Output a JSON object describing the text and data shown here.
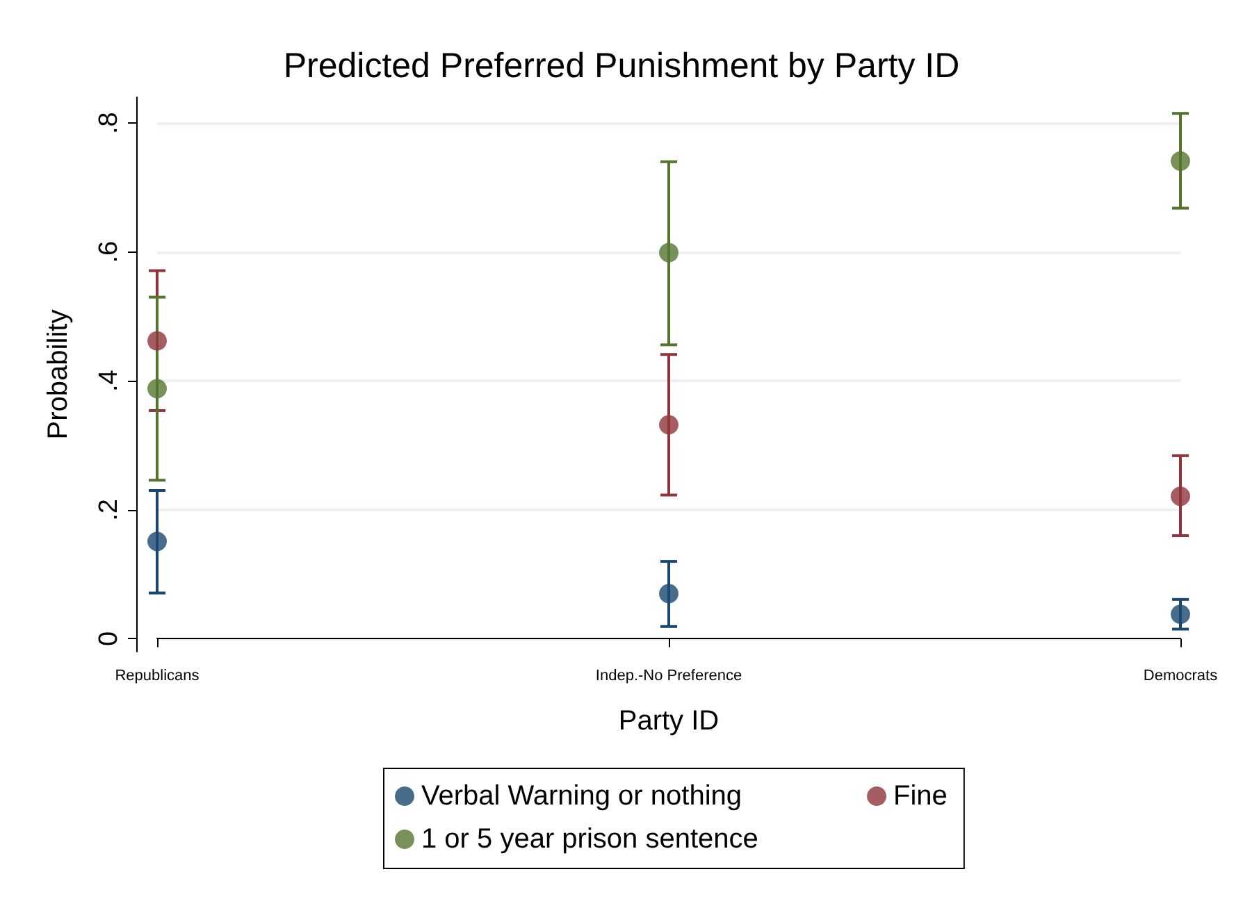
{
  "chart_data": {
    "type": "scatter",
    "title": "Predicted Preferred Punishment by Party ID",
    "xlabel": "Party ID",
    "ylabel": "Probability",
    "categories": [
      "Republicans",
      "Indep.-No Preference",
      "Democrats"
    ],
    "series": [
      {
        "name": "Verbal Warning or nothing",
        "color": "#1a476f",
        "values": [
          0.151,
          0.07,
          0.038
        ],
        "errors": [
          [
            0.071,
            0.23
          ],
          [
            0.019,
            0.12
          ],
          [
            0.015,
            0.061
          ]
        ]
      },
      {
        "name": "Fine",
        "color": "#90353b",
        "values": [
          0.462,
          0.332,
          0.221
        ],
        "errors": [
          [
            0.354,
            0.571
          ],
          [
            0.223,
            0.441
          ],
          [
            0.16,
            0.284
          ]
        ]
      },
      {
        "name": "1 or 5 year prison sentence",
        "color": "#55752f",
        "values": [
          0.388,
          0.599,
          0.741
        ],
        "errors": [
          [
            0.246,
            0.53
          ],
          [
            0.456,
            0.74
          ],
          [
            0.668,
            0.815
          ]
        ]
      }
    ],
    "ylim": [
      -0.02,
      0.84
    ],
    "yticks": [
      {
        "value": 0,
        "label": "0"
      },
      {
        "value": 0.2,
        "label": ".2"
      },
      {
        "value": 0.4,
        "label": ".4"
      },
      {
        "value": 0.6,
        "label": ".6"
      },
      {
        "value": 0.8,
        "label": ".8"
      }
    ],
    "grid": "y",
    "legend": "bottom",
    "marker": "circle"
  }
}
